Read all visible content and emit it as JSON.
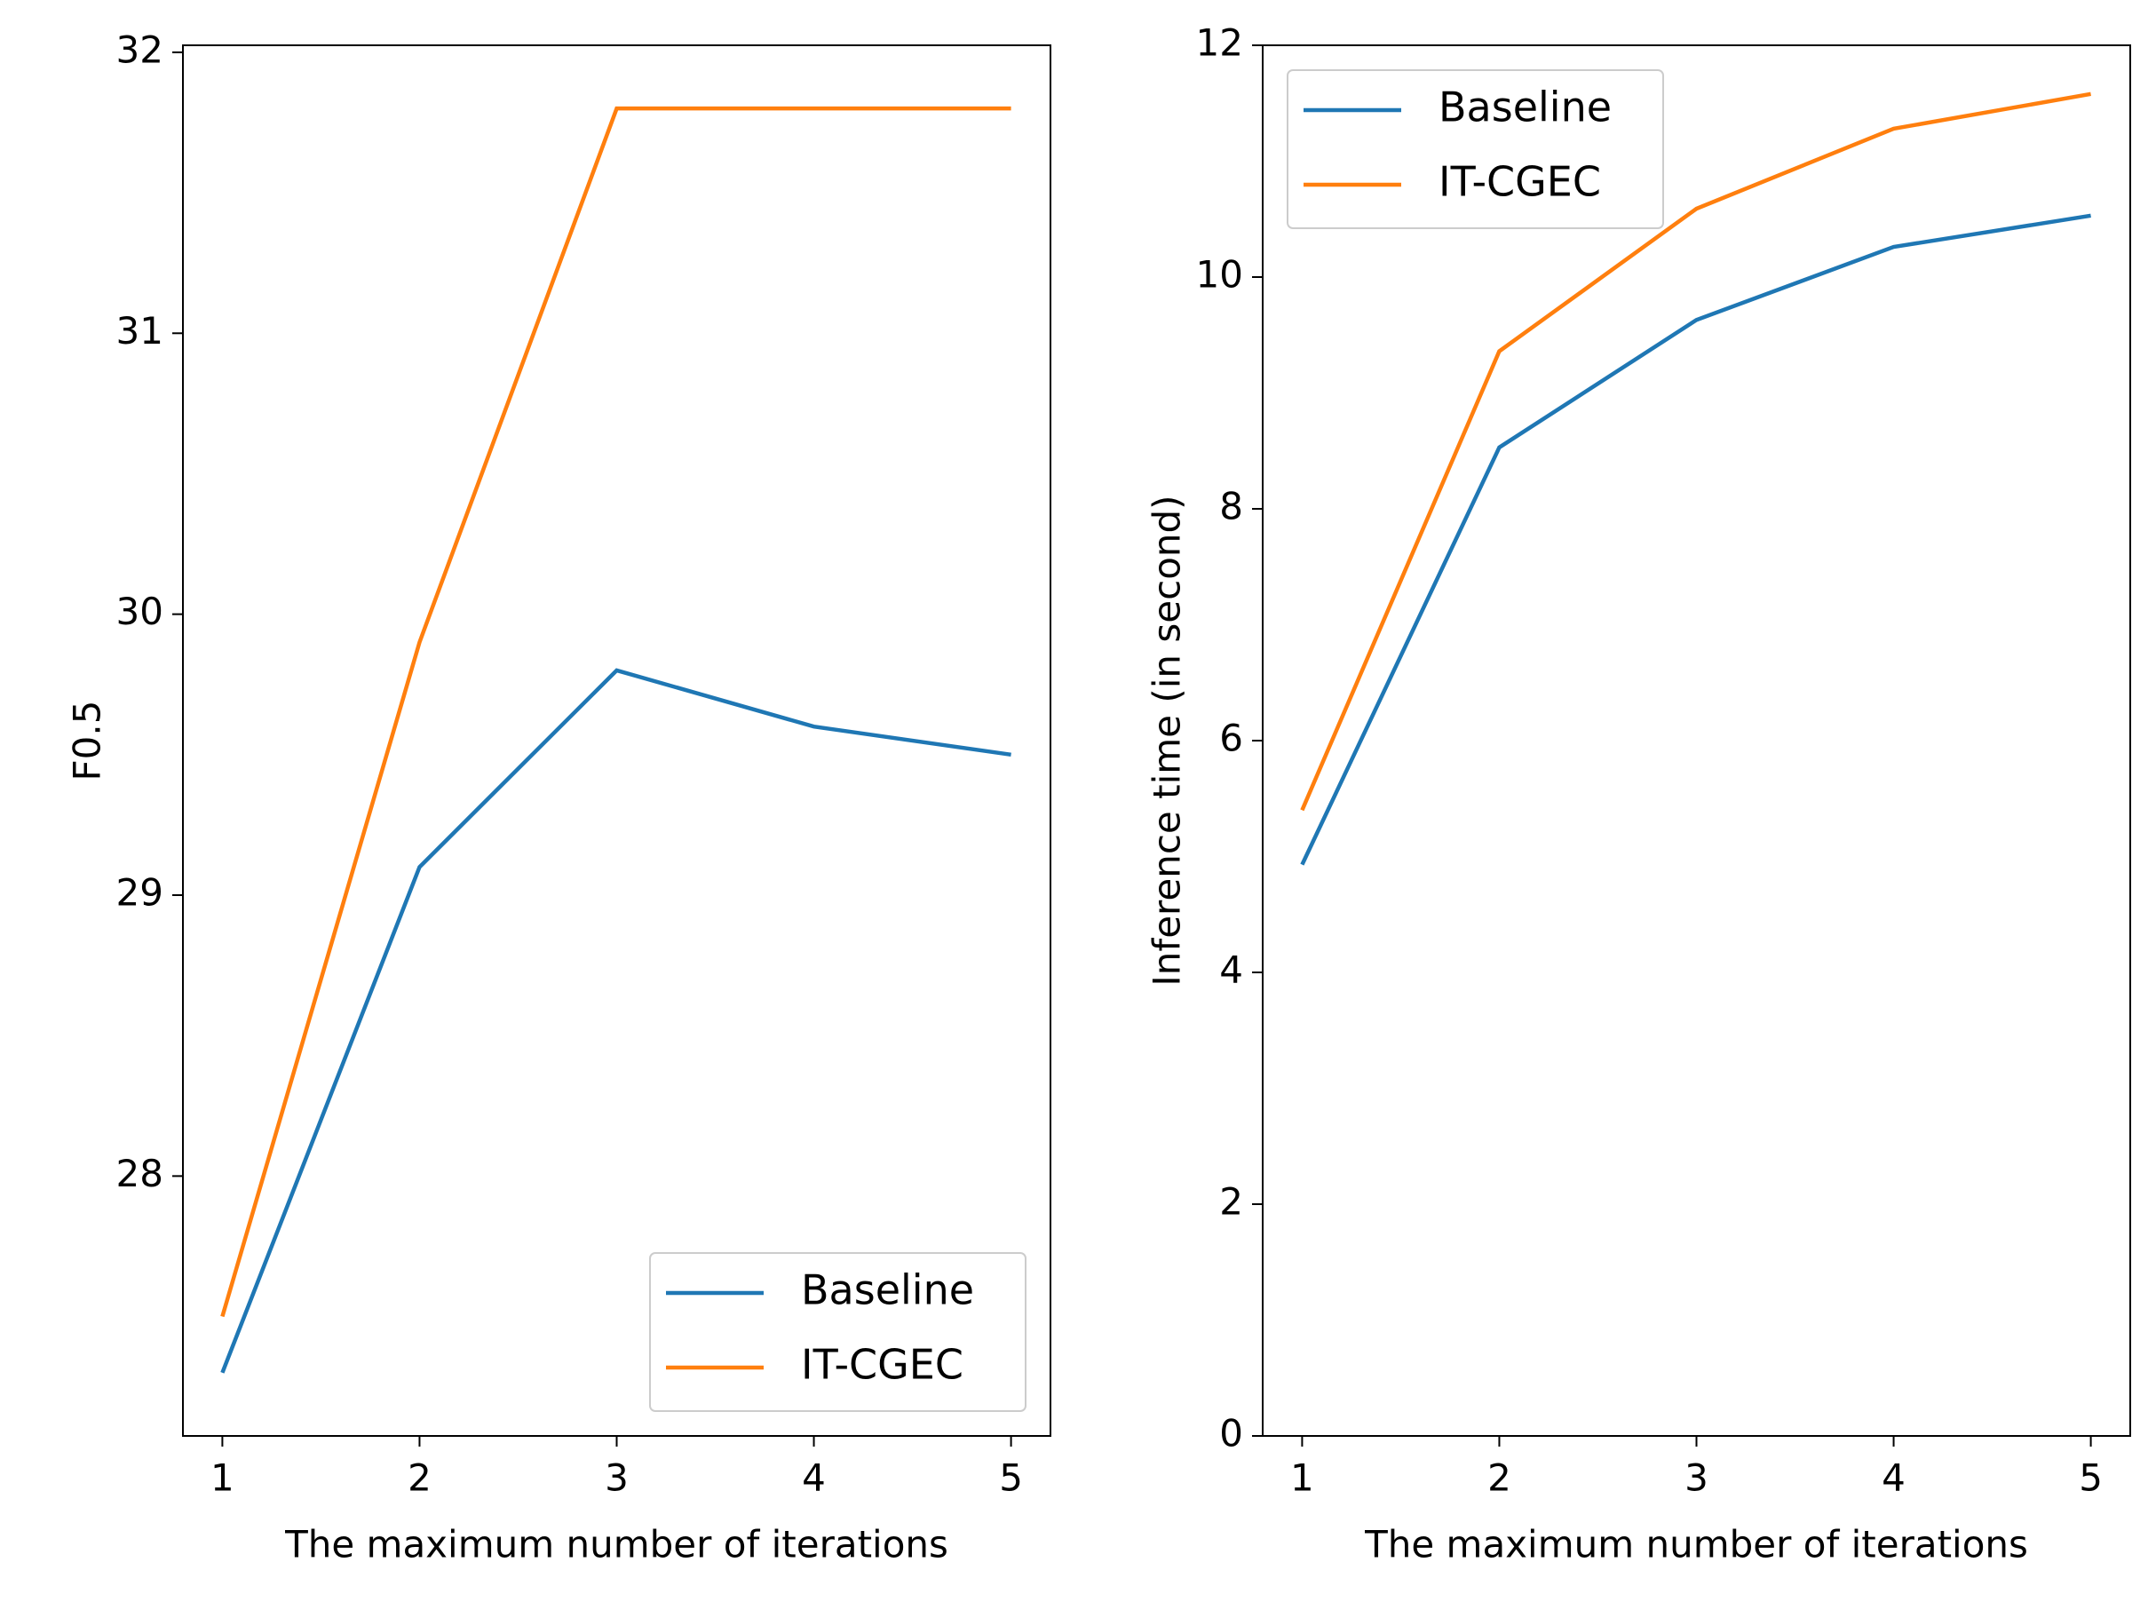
{
  "chart_data": [
    {
      "type": "line",
      "xlabel": "The maximum number of iterations",
      "ylabel": "F0.5",
      "x": [
        1,
        2,
        3,
        4,
        5
      ],
      "xlim": [
        0.8,
        5.2
      ],
      "xticks": [
        1,
        2,
        3,
        4,
        5
      ],
      "ylim": [
        27.075,
        32.025
      ],
      "yticks": [
        28,
        29,
        30,
        31,
        32
      ],
      "legend": "lower-right",
      "series": [
        {
          "name": "Baseline",
          "color": "#1f77b4",
          "values": [
            27.3,
            29.1,
            29.8,
            29.6,
            29.5
          ]
        },
        {
          "name": "IT-CGEC",
          "color": "#ff7f0e",
          "values": [
            27.5,
            29.9,
            31.8,
            31.8,
            31.8
          ]
        }
      ]
    },
    {
      "type": "line",
      "xlabel": "The maximum number of iterations",
      "ylabel": "Inference time (in second)",
      "x": [
        1,
        2,
        3,
        4,
        5
      ],
      "xlim": [
        0.8,
        5.2
      ],
      "xticks": [
        1,
        2,
        3,
        4,
        5
      ],
      "ylim": [
        0,
        12
      ],
      "yticks": [
        0,
        2,
        4,
        6,
        8,
        10,
        12
      ],
      "legend": "upper-left",
      "series": [
        {
          "name": "Baseline",
          "color": "#1f77b4",
          "values": [
            4.93,
            8.53,
            9.63,
            10.26,
            10.53
          ]
        },
        {
          "name": "IT-CGEC",
          "color": "#ff7f0e",
          "values": [
            5.4,
            9.36,
            10.59,
            11.28,
            11.58
          ]
        }
      ]
    }
  ]
}
